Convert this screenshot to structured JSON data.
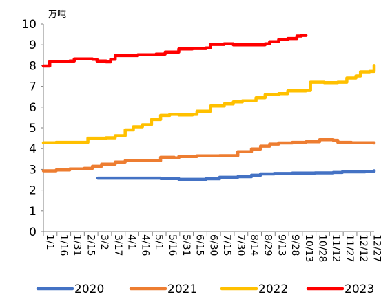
{
  "chart_data": {
    "type": "line",
    "unit_label": "万吨",
    "ylim": [
      0,
      10
    ],
    "yticks": [
      0,
      1,
      2,
      3,
      4,
      5,
      6,
      7,
      8,
      9,
      10
    ],
    "x_tick_labels": [
      "1/1",
      "1/16",
      "1/31",
      "2/15",
      "3/2",
      "3/17",
      "4/1",
      "4/16",
      "5/1",
      "5/16",
      "5/31",
      "6/15",
      "6/30",
      "7/15",
      "7/30",
      "8/14",
      "8/29",
      "9/13",
      "9/28",
      "10/13",
      "10/28",
      "11/12",
      "11/27",
      "12/12",
      "12/27"
    ],
    "x_domain": [
      1,
      365
    ],
    "x_ticks_day": [
      1,
      16,
      31,
      46,
      61,
      76,
      91,
      106,
      121,
      136,
      151,
      166,
      181,
      196,
      211,
      226,
      241,
      256,
      271,
      286,
      301,
      316,
      331,
      346,
      361
    ],
    "grid": false,
    "legend_position": "bottom",
    "series": [
      {
        "name": "2020",
        "color": "#4472C4",
        "points": [
          [
            61,
            2.58
          ],
          [
            100,
            2.58
          ],
          [
            130,
            2.56
          ],
          [
            150,
            2.52
          ],
          [
            170,
            2.52
          ],
          [
            180,
            2.55
          ],
          [
            195,
            2.62
          ],
          [
            215,
            2.65
          ],
          [
            230,
            2.72
          ],
          [
            240,
            2.78
          ],
          [
            255,
            2.8
          ],
          [
            275,
            2.82
          ],
          [
            300,
            2.83
          ],
          [
            320,
            2.85
          ],
          [
            330,
            2.88
          ],
          [
            355,
            2.9
          ],
          [
            365,
            2.93
          ]
        ]
      },
      {
        "name": "2021",
        "color": "#ED7D31",
        "points": [
          [
            1,
            2.93
          ],
          [
            15,
            2.97
          ],
          [
            30,
            3.02
          ],
          [
            46,
            3.05
          ],
          [
            55,
            3.15
          ],
          [
            65,
            3.25
          ],
          [
            80,
            3.35
          ],
          [
            91,
            3.42
          ],
          [
            125,
            3.42
          ],
          [
            130,
            3.58
          ],
          [
            145,
            3.55
          ],
          [
            150,
            3.62
          ],
          [
            170,
            3.65
          ],
          [
            195,
            3.66
          ],
          [
            215,
            3.85
          ],
          [
            230,
            3.98
          ],
          [
            240,
            4.12
          ],
          [
            250,
            4.22
          ],
          [
            260,
            4.27
          ],
          [
            275,
            4.3
          ],
          [
            290,
            4.33
          ],
          [
            305,
            4.43
          ],
          [
            320,
            4.4
          ],
          [
            325,
            4.3
          ],
          [
            340,
            4.28
          ],
          [
            365,
            4.27
          ]
        ]
      },
      {
        "name": "2022",
        "color": "#FFC000",
        "points": [
          [
            1,
            4.28
          ],
          [
            15,
            4.3
          ],
          [
            46,
            4.3
          ],
          [
            50,
            4.5
          ],
          [
            70,
            4.52
          ],
          [
            80,
            4.62
          ],
          [
            91,
            4.9
          ],
          [
            100,
            5.05
          ],
          [
            110,
            5.15
          ],
          [
            120,
            5.4
          ],
          [
            130,
            5.6
          ],
          [
            140,
            5.65
          ],
          [
            150,
            5.62
          ],
          [
            165,
            5.65
          ],
          [
            170,
            5.8
          ],
          [
            185,
            6.05
          ],
          [
            200,
            6.15
          ],
          [
            210,
            6.25
          ],
          [
            220,
            6.3
          ],
          [
            235,
            6.45
          ],
          [
            245,
            6.6
          ],
          [
            260,
            6.65
          ],
          [
            270,
            6.78
          ],
          [
            290,
            6.8
          ],
          [
            295,
            7.2
          ],
          [
            310,
            7.18
          ],
          [
            325,
            7.2
          ],
          [
            335,
            7.4
          ],
          [
            345,
            7.5
          ],
          [
            350,
            7.7
          ],
          [
            360,
            7.72
          ],
          [
            365,
            8.0
          ]
        ]
      },
      {
        "name": "2023",
        "color": "#FF0000",
        "points": [
          [
            1,
            7.98
          ],
          [
            8,
            8.2
          ],
          [
            30,
            8.22
          ],
          [
            35,
            8.32
          ],
          [
            55,
            8.3
          ],
          [
            60,
            8.22
          ],
          [
            70,
            8.18
          ],
          [
            75,
            8.3
          ],
          [
            80,
            8.48
          ],
          [
            100,
            8.48
          ],
          [
            105,
            8.52
          ],
          [
            125,
            8.55
          ],
          [
            135,
            8.65
          ],
          [
            150,
            8.8
          ],
          [
            165,
            8.82
          ],
          [
            180,
            8.85
          ],
          [
            185,
            9.02
          ],
          [
            200,
            9.05
          ],
          [
            210,
            9.0
          ],
          [
            230,
            9.0
          ],
          [
            245,
            9.05
          ],
          [
            250,
            9.15
          ],
          [
            260,
            9.25
          ],
          [
            270,
            9.3
          ],
          [
            280,
            9.42
          ],
          [
            285,
            9.45
          ],
          [
            290,
            9.45
          ]
        ]
      }
    ]
  }
}
